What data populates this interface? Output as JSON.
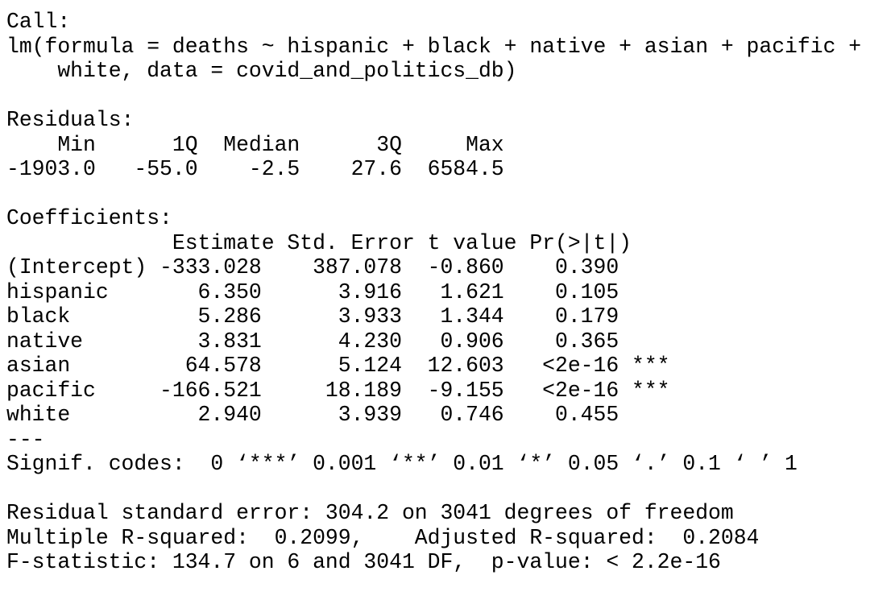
{
  "blocks": [
    {
      "lines": [
        "Call:",
        "lm(formula = deaths ~ hispanic + black + native + asian + pacific +",
        "    white, data = covid_and_politics_db)"
      ]
    },
    {
      "lines": [
        "Residuals:",
        "    Min      1Q  Median      3Q     Max",
        "-1903.0   -55.0    -2.5    27.6  6584.5"
      ]
    },
    {
      "lines": [
        "Coefficients:",
        "             Estimate Std. Error t value Pr(>|t|)",
        "(Intercept) -333.028    387.078  -0.860    0.390",
        "hispanic       6.350      3.916   1.621    0.105",
        "black          5.286      3.933   1.344    0.179",
        "native         3.831      4.230   0.906    0.365",
        "asian         64.578      5.124  12.603   <2e-16 ***",
        "pacific     -166.521     18.189  -9.155   <2e-16 ***",
        "white          2.940      3.939   0.746    0.455",
        "---",
        "Signif. codes:  0 ‘***’ 0.001 ‘**’ 0.01 ‘*’ 0.05 ‘.’ 0.1 ‘ ’ 1"
      ]
    },
    {
      "lines": [
        "Residual standard error: 304.2 on 3041 degrees of freedom",
        "Multiple R-squared:  0.2099,    Adjusted R-squared:  0.2084",
        "F-statistic: 134.7 on 6 and 3041 DF,  p-value: < 2.2e-16"
      ]
    }
  ]
}
